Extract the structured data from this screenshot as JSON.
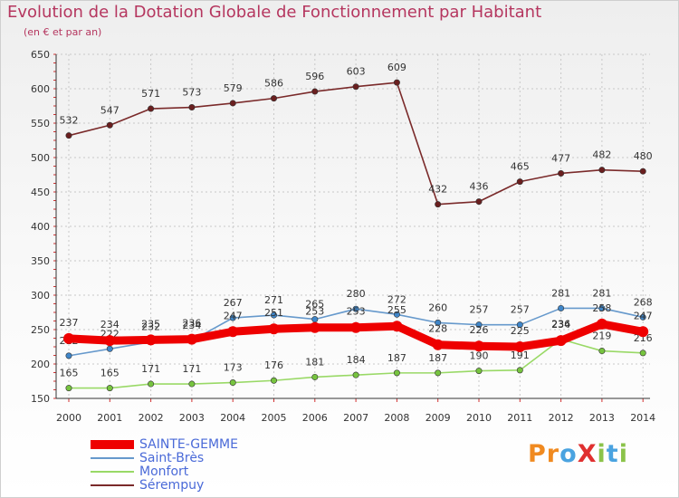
{
  "title": "Evolution de la Dotation Globale de Fonctionnement par Habitant",
  "subtitle": "(en € et par an)",
  "logo": {
    "text": "ProXiti",
    "letter_colors": [
      "#f08a20",
      "#f08a20",
      "#4aa3e0",
      "#e03030",
      "#8bc34a",
      "#4aa3e0",
      "#8bc34a"
    ]
  },
  "chart_data": {
    "type": "line",
    "title": "Evolution de la Dotation Globale de Fonctionnement par Habitant",
    "subtitle": "(en € et par an)",
    "xlabel": "",
    "ylabel": "",
    "ylim": [
      150,
      650
    ],
    "yticks": [
      150,
      200,
      250,
      300,
      350,
      400,
      450,
      500,
      550,
      600,
      650
    ],
    "grid": true,
    "legend_position": "bottom-left",
    "x": [
      "2000",
      "2001",
      "2002",
      "2003",
      "2004",
      "2005",
      "2006",
      "2007",
      "2008",
      "2009",
      "2010",
      "2011",
      "2012",
      "2013",
      "2014"
    ],
    "series": [
      {
        "name": "Sérempuy",
        "color": "#7a2a2a",
        "marker_color": "#6a1f1f",
        "values": [
          532,
          547,
          571,
          573,
          579,
          586,
          596,
          603,
          609,
          432,
          436,
          465,
          477,
          482,
          480
        ],
        "label_dy": -13,
        "bold": false
      },
      {
        "name": "Saint-Brès",
        "color": "#6699cc",
        "marker_color": "#3f86c9",
        "values": [
          212,
          222,
          232,
          234,
          267,
          271,
          265,
          280,
          272,
          260,
          257,
          257,
          281,
          281,
          268
        ],
        "label_dy": -13,
        "bold": false
      },
      {
        "name": "Monfort",
        "color": "#99d966",
        "marker_color": "#77c43f",
        "values": [
          165,
          165,
          171,
          171,
          173,
          176,
          181,
          184,
          187,
          187,
          190,
          191,
          236,
          219,
          216
        ],
        "label_dy": -13,
        "bold": false
      },
      {
        "name": "SAINTE-GEMME",
        "color": "#ee0000",
        "marker_color": "#ee0000",
        "values": [
          237,
          234,
          235,
          236,
          247,
          251,
          253,
          253,
          255,
          228,
          226,
          225,
          234,
          258,
          247
        ],
        "label_dy": -14,
        "bold": true
      }
    ]
  },
  "legend": [
    {
      "label": "SAINTE-GEMME",
      "color": "#ee0000",
      "thickness": 10
    },
    {
      "label": "Saint-Brès",
      "color": "#6699cc",
      "thickness": 2
    },
    {
      "label": "Monfort",
      "color": "#99d966",
      "thickness": 2
    },
    {
      "label": "Sérempuy",
      "color": "#7a2a2a",
      "thickness": 2
    }
  ]
}
